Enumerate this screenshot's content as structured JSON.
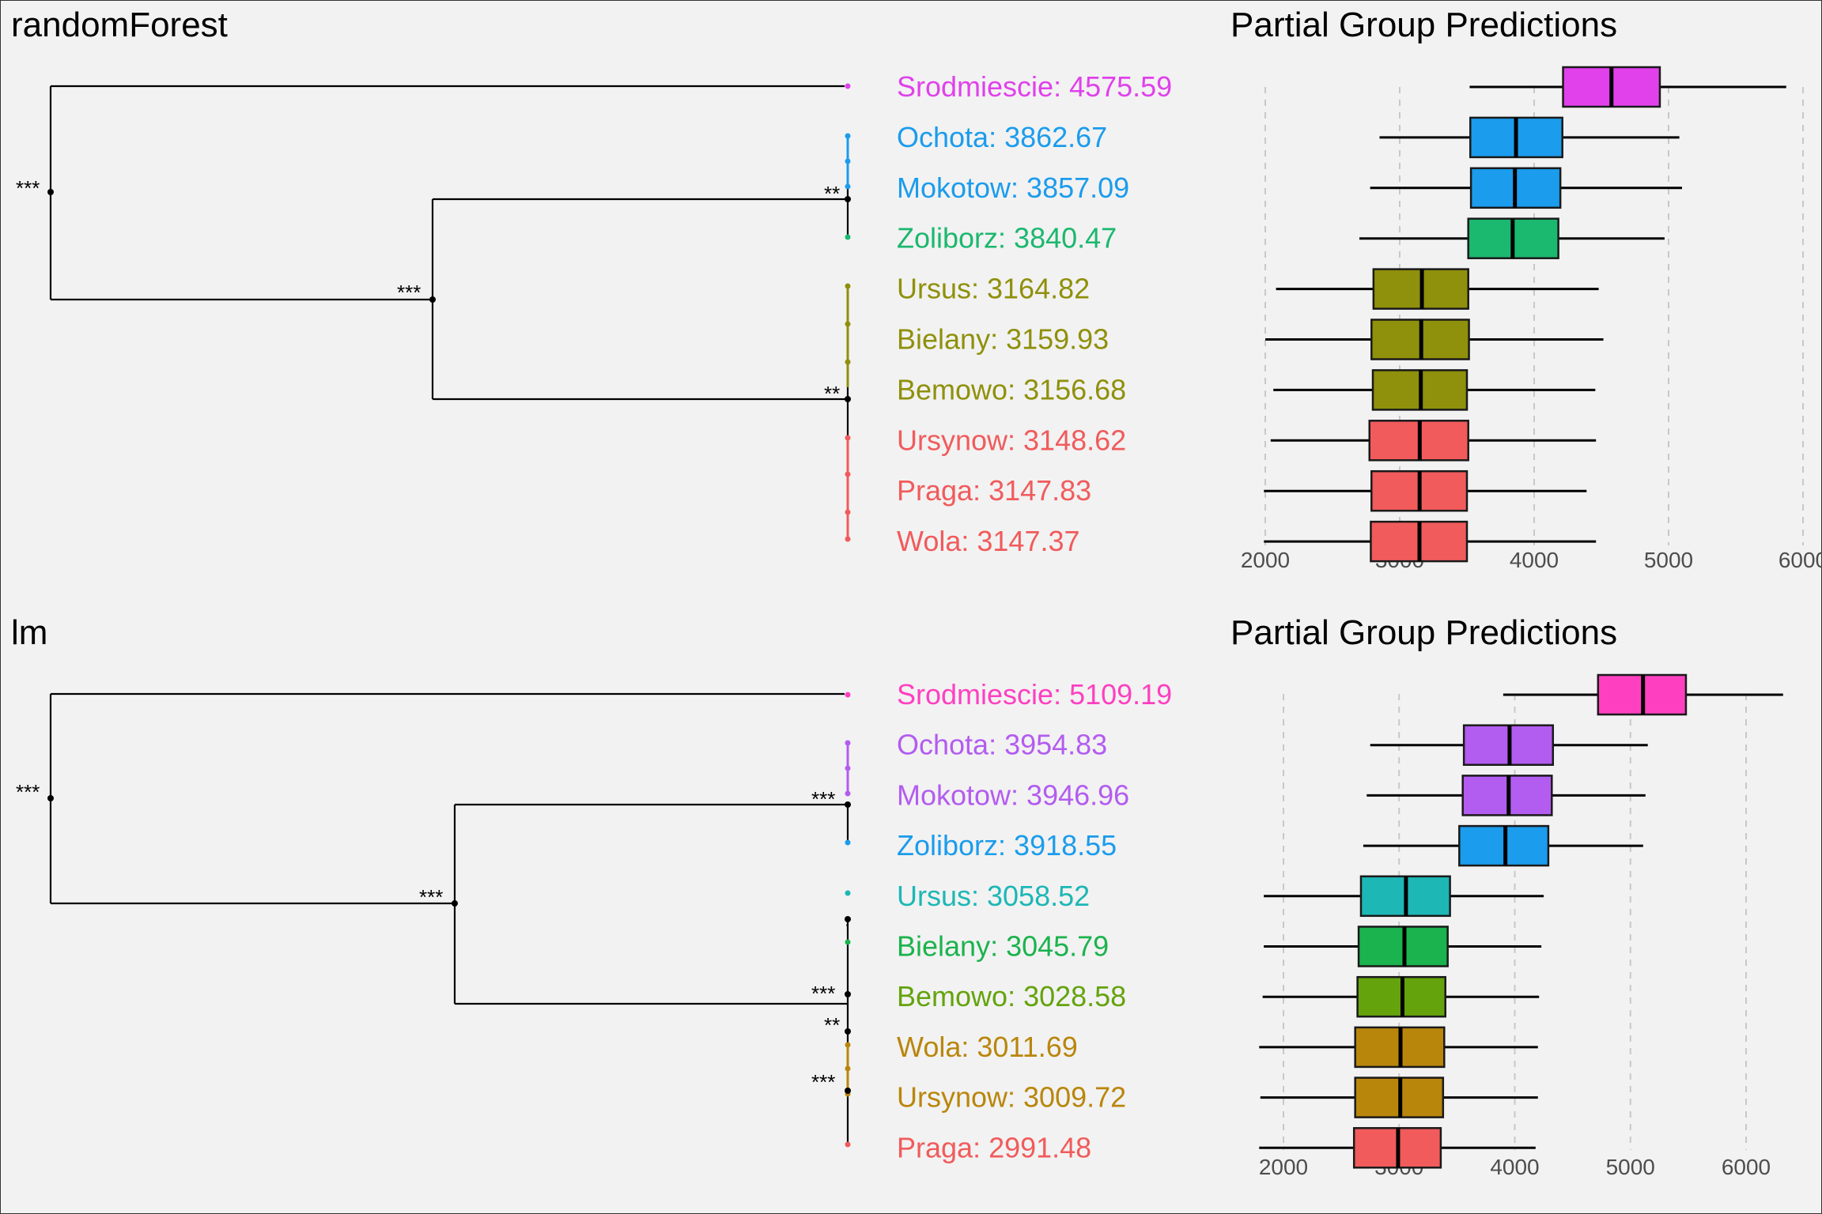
{
  "chart_data": [
    {
      "type": "dendrogram+boxplot",
      "model_title": "randomForest",
      "boxplot_title": "Partial Group Predictions",
      "x_ticks": [
        2000,
        3000,
        4000,
        5000,
        6000
      ],
      "x_tick_labels": [
        "2000",
        "3000",
        "4000",
        "5000",
        "6000"
      ],
      "xlim": [
        1990,
        6000
      ],
      "grid": "vertical dashed",
      "groups": [
        {
          "label": "Srodmiescie: 4575.59",
          "color": "#e041eb",
          "box": {
            "min": 3520,
            "q1": 4215,
            "median": 4575,
            "q3": 4935,
            "max": 5875
          }
        },
        {
          "label": "Ochota: 3862.67",
          "color": "#1b9cec",
          "box": {
            "min": 2850,
            "q1": 3525,
            "median": 3865,
            "q3": 4210,
            "max": 5080
          }
        },
        {
          "label": "Mokotow: 3857.09",
          "color": "#1b9cec",
          "box": {
            "min": 2780,
            "q1": 3530,
            "median": 3857,
            "q3": 4195,
            "max": 5100
          }
        },
        {
          "label": "Zoliborz: 3840.47",
          "color": "#1bb86f",
          "box": {
            "min": 2700,
            "q1": 3510,
            "median": 3840,
            "q3": 4180,
            "max": 4970
          }
        },
        {
          "label": "Ursus: 3164.82",
          "color": "#8f900b",
          "box": {
            "min": 2080,
            "q1": 2805,
            "median": 3165,
            "q3": 3510,
            "max": 4480
          }
        },
        {
          "label": "Bielany: 3159.93",
          "color": "#8f900b",
          "box": {
            "min": 2000,
            "q1": 2790,
            "median": 3160,
            "q3": 3515,
            "max": 4515
          }
        },
        {
          "label": "Bemowo: 3156.68",
          "color": "#8f900b",
          "box": {
            "min": 2060,
            "q1": 2800,
            "median": 3157,
            "q3": 3500,
            "max": 4455
          }
        },
        {
          "label": "Ursynow: 3148.62",
          "color": "#f15b5c",
          "box": {
            "min": 2040,
            "q1": 2775,
            "median": 3149,
            "q3": 3510,
            "max": 4460
          }
        },
        {
          "label": "Praga: 3147.83",
          "color": "#f15b5c",
          "box": {
            "min": 1990,
            "q1": 2790,
            "median": 3148,
            "q3": 3500,
            "max": 4390
          }
        },
        {
          "label": "Wola: 3147.37",
          "color": "#f15b5c",
          "box": {
            "min": 1990,
            "q1": 2785,
            "median": 3147,
            "q3": 3500,
            "max": 4460
          }
        }
      ],
      "significance_labels": [
        "***",
        "***",
        "**",
        "**"
      ]
    },
    {
      "type": "dendrogram+boxplot",
      "model_title": "lm",
      "boxplot_title": "Partial Group Predictions",
      "x_ticks": [
        2000,
        3000,
        4000,
        5000,
        6000
      ],
      "x_tick_labels": [
        "2000",
        "3000",
        "4000",
        "5000",
        "6000"
      ],
      "xlim": [
        1790,
        6320
      ],
      "grid": "vertical dashed",
      "groups": [
        {
          "label": "Srodmiescie: 5109.19",
          "color": "#fe40c0",
          "box": {
            "min": 3900,
            "q1": 4720,
            "median": 5109,
            "q3": 5480,
            "max": 6320
          }
        },
        {
          "label": "Ochota: 3954.83",
          "color": "#b35cf0",
          "box": {
            "min": 2750,
            "q1": 3560,
            "median": 3955,
            "q3": 4330,
            "max": 5150
          }
        },
        {
          "label": "Mokotow: 3946.96",
          "color": "#b35cf0",
          "box": {
            "min": 2720,
            "q1": 3550,
            "median": 3947,
            "q3": 4320,
            "max": 5130
          }
        },
        {
          "label": "Zoliborz: 3918.55",
          "color": "#1b9cec",
          "box": {
            "min": 2690,
            "q1": 3520,
            "median": 3919,
            "q3": 4290,
            "max": 5110
          }
        },
        {
          "label": "Ursus: 3058.52",
          "color": "#1db7b5",
          "box": {
            "min": 1830,
            "q1": 2670,
            "median": 3059,
            "q3": 3440,
            "max": 4250
          }
        },
        {
          "label": "Bielany: 3045.79",
          "color": "#1bb34d",
          "box": {
            "min": 1830,
            "q1": 2650,
            "median": 3046,
            "q3": 3420,
            "max": 4230
          }
        },
        {
          "label": "Bemowo: 3028.58",
          "color": "#64a30c",
          "box": {
            "min": 1820,
            "q1": 2640,
            "median": 3029,
            "q3": 3400,
            "max": 4210
          }
        },
        {
          "label": "Wola: 3011.69",
          "color": "#b9860c",
          "box": {
            "min": 1790,
            "q1": 2620,
            "median": 3012,
            "q3": 3390,
            "max": 4200
          }
        },
        {
          "label": "Ursynow: 3009.72",
          "color": "#b9860c",
          "box": {
            "min": 1800,
            "q1": 2620,
            "median": 3010,
            "q3": 3380,
            "max": 4200
          }
        },
        {
          "label": "Praga: 2991.48",
          "color": "#f15b5c",
          "box": {
            "min": 1790,
            "q1": 2610,
            "median": 2991,
            "q3": 3360,
            "max": 4180
          }
        }
      ],
      "significance_labels": [
        "***",
        "***",
        "***",
        ".",
        "***",
        "**",
        "***"
      ]
    }
  ]
}
